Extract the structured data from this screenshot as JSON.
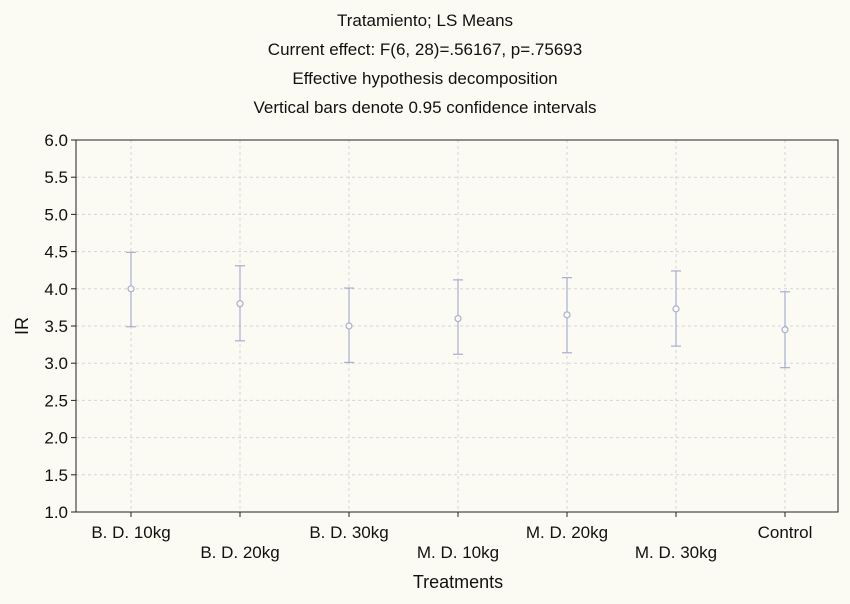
{
  "chart_data": {
    "type": "scatter",
    "title": "Tratamiento; LS Means",
    "subtitle": [
      "Current effect: F(6, 28)=.56167, p=.75693",
      "Effective hypothesis decomposition",
      "Vertical bars denote 0.95 confidence intervals"
    ],
    "xlabel": "Treatments",
    "ylabel": "IR",
    "categories": [
      "B. D. 10kg",
      "B. D. 20kg",
      "B. D. 30kg",
      "M. D. 10kg",
      "M. D. 20kg",
      "M. D. 30kg",
      "Control"
    ],
    "values": [
      4.0,
      3.8,
      3.5,
      3.6,
      3.65,
      3.73,
      3.45
    ],
    "ci_lower": [
      3.49,
      3.3,
      3.01,
      3.12,
      3.14,
      3.23,
      2.94
    ],
    "ci_upper": [
      4.49,
      4.31,
      4.01,
      4.12,
      4.15,
      4.24,
      3.96
    ],
    "ylim": [
      1.0,
      6.0
    ],
    "yticks": [
      "1.0",
      "1.5",
      "2.0",
      "2.5",
      "3.0",
      "3.5",
      "4.0",
      "4.5",
      "5.0",
      "5.5",
      "6.0"
    ],
    "grid": true,
    "marker_color": "#a9aed2",
    "grid_color": "#d6d6d6",
    "background_color": "#fbfbf3"
  }
}
